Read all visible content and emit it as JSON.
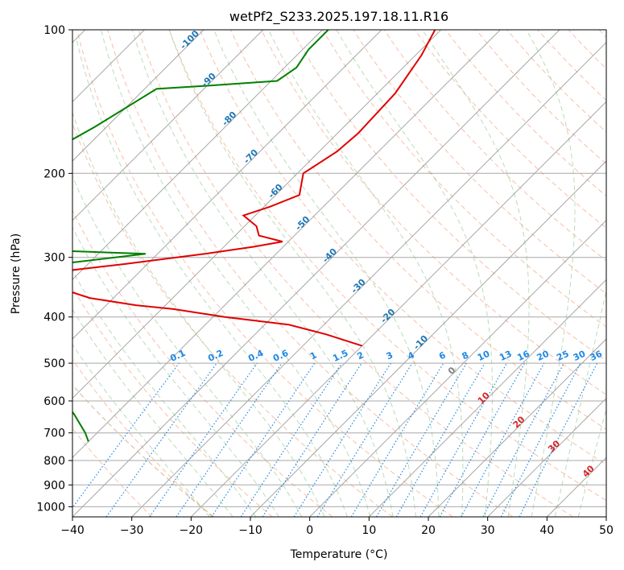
{
  "chart_data": {
    "type": "line",
    "subtype": "skew-t log-p diagram",
    "title": "wetPf2_S233.2025.197.18.11.R16",
    "xlabel": "Temperature (°C)",
    "ylabel": "Pressure (hPa)",
    "xlim": [
      -40,
      50
    ],
    "ylim": [
      1050,
      100
    ],
    "y_scale": "log",
    "grid": true,
    "x_ticks": [
      -40,
      -30,
      -20,
      -10,
      0,
      10,
      20,
      30,
      40,
      50
    ],
    "y_ticks": [
      100,
      200,
      300,
      400,
      500,
      600,
      700,
      800,
      900,
      1000
    ],
    "isotherm_labels": [
      "-100",
      "-90",
      "-80",
      "-70",
      "-60",
      "-50",
      "-40",
      "-30",
      "-20",
      "-10",
      "0",
      "10",
      "20",
      "30",
      "40"
    ],
    "mixing_ratio_labels": [
      "0.1",
      "0.2",
      "0.4",
      "0.6",
      "1",
      "1.5",
      "2",
      "3",
      "4",
      "6",
      "8",
      "10",
      "13",
      "16",
      "20",
      "25",
      "30",
      "36"
    ],
    "mixing_ratio_values": [
      0.1,
      0.2,
      0.4,
      0.6,
      1,
      1.5,
      2,
      3,
      4,
      6,
      8,
      10,
      13,
      16,
      20,
      25,
      30,
      36
    ],
    "series": [
      {
        "color": "#e00000",
        "points": [
          {
            "p": 100,
            "t": -61
          },
          {
            "p": 113,
            "t": -59
          },
          {
            "p": 136,
            "t": -57
          },
          {
            "p": 165,
            "t": -56.5
          },
          {
            "p": 180,
            "t": -57
          },
          {
            "p": 200,
            "t": -59
          },
          {
            "p": 222,
            "t": -56
          },
          {
            "p": 235,
            "t": -59
          },
          {
            "p": 245,
            "t": -62
          },
          {
            "p": 258,
            "t": -58
          },
          {
            "p": 270,
            "t": -56
          },
          {
            "p": 278,
            "t": -51
          },
          {
            "p": 285,
            "t": -55
          },
          {
            "p": 295,
            "t": -62
          },
          {
            "p": 310,
            "t": -74
          },
          {
            "p": 323,
            "t": -85
          },
          {
            "p": 333,
            "t": -86
          },
          {
            "p": 350,
            "t": -80
          },
          {
            "p": 365,
            "t": -74
          },
          {
            "p": 378,
            "t": -65
          },
          {
            "p": 385,
            "t": -58
          },
          {
            "p": 400,
            "t": -48
          },
          {
            "p": 415,
            "t": -36
          },
          {
            "p": 435,
            "t": -28
          },
          {
            "p": 460,
            "t": -20
          }
        ]
      },
      {
        "color": "#008000",
        "points": [
          {
            "p": 100,
            "t": -79
          },
          {
            "p": 110,
            "t": -79
          },
          {
            "p": 120,
            "t": -78
          },
          {
            "p": 128,
            "t": -79
          },
          {
            "p": 131,
            "t": -90
          },
          {
            "p": 133,
            "t": -98
          },
          {
            "p": 160,
            "t": -102
          },
          {
            "p": 185,
            "t": -106
          },
          {
            "p": 210,
            "t": -111
          },
          {
            "p": 230,
            "t": -114
          },
          {
            "p": 245,
            "t": -112
          },
          {
            "p": 250,
            "t": -102
          },
          {
            "p": 253,
            "t": -93
          },
          {
            "p": 258,
            "t": -104
          },
          {
            "p": 270,
            "t": -98
          },
          {
            "p": 288,
            "t": -96
          },
          {
            "p": 295,
            "t": -72
          },
          {
            "p": 310,
            "t": -85
          },
          {
            "p": 325,
            "t": -101
          },
          {
            "p": 340,
            "t": -97
          },
          {
            "p": 360,
            "t": -82
          },
          {
            "p": 365,
            "t": -86
          },
          {
            "p": 380,
            "t": -83
          },
          {
            "p": 420,
            "t": -79
          },
          {
            "p": 470,
            "t": -72
          },
          {
            "p": 530,
            "t": -68
          },
          {
            "p": 580,
            "t": -63
          },
          {
            "p": 640,
            "t": -57
          },
          {
            "p": 700,
            "t": -52
          },
          {
            "p": 730,
            "t": -50
          }
        ]
      }
    ]
  }
}
